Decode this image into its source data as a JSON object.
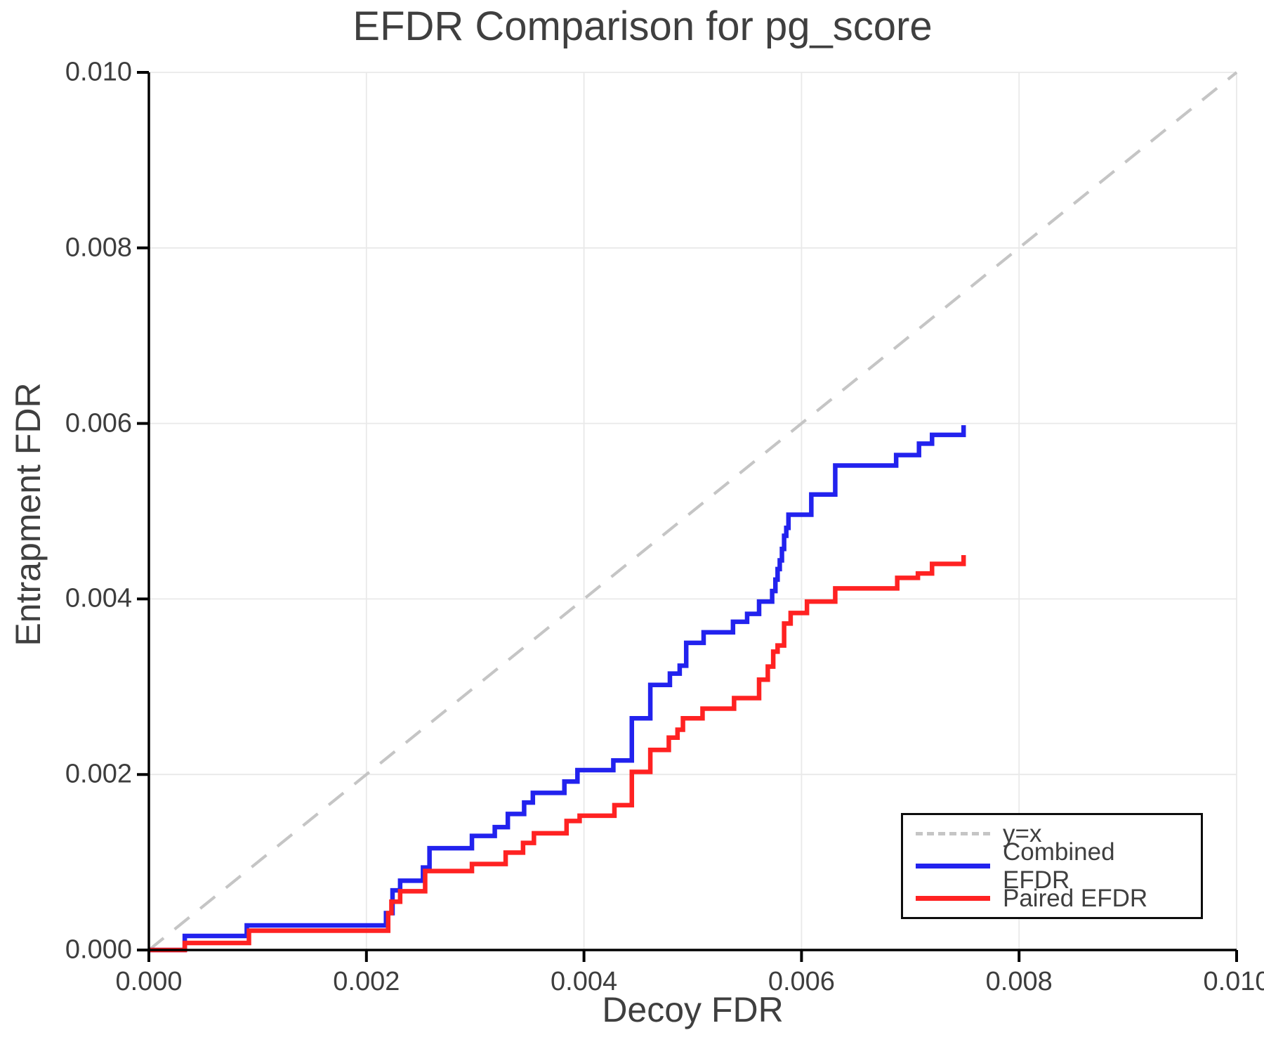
{
  "chart_data": {
    "type": "line",
    "title": "EFDR Comparison for pg_score",
    "xlabel": "Decoy FDR",
    "ylabel": "Entrapment FDR",
    "xlim": [
      0.0,
      0.01
    ],
    "ylim": [
      0.0,
      0.01
    ],
    "xticks": [
      0.0,
      0.002,
      0.004,
      0.006,
      0.008,
      0.01
    ],
    "yticks": [
      0.0,
      0.002,
      0.004,
      0.006,
      0.008,
      0.01
    ],
    "xtick_labels": [
      "0.000",
      "0.002",
      "0.004",
      "0.006",
      "0.008",
      "0.010"
    ],
    "ytick_labels": [
      "0.000",
      "0.002",
      "0.004",
      "0.006",
      "0.008",
      "0.010"
    ],
    "grid": true,
    "grid_color": "#e9e9e9",
    "spine_color": "#000000",
    "text_color": "#3d3d3d",
    "legend_position": "lower right",
    "reference_line": {
      "label": "y=x",
      "style": "dashed",
      "color": "#c5c5c5",
      "from": [
        0.0,
        0.0
      ],
      "to": [
        0.01,
        0.01
      ]
    },
    "legend": [
      {
        "label": "y=x",
        "color": "#c5c5c5",
        "dashed": true
      },
      {
        "label": "Combined EFDR",
        "color": "#2222ee",
        "dashed": false
      },
      {
        "label": "Paired EFDR",
        "color": "#ff2222",
        "dashed": false
      }
    ],
    "series": [
      {
        "name": "Combined EFDR",
        "color": "#2222ee",
        "step": true,
        "points": [
          [
            0.0,
            0.0
          ],
          [
            0.00033,
            0.00016
          ],
          [
            0.0009,
            0.00028
          ],
          [
            0.00218,
            0.00042
          ],
          [
            0.00224,
            0.00068
          ],
          [
            0.00231,
            0.00079
          ],
          [
            0.00252,
            0.00094
          ],
          [
            0.00258,
            0.00116
          ],
          [
            0.00297,
            0.0013
          ],
          [
            0.00318,
            0.0014
          ],
          [
            0.0033,
            0.00155
          ],
          [
            0.00345,
            0.00168
          ],
          [
            0.00353,
            0.00179
          ],
          [
            0.00382,
            0.00192
          ],
          [
            0.00394,
            0.00205
          ],
          [
            0.00427,
            0.00216
          ],
          [
            0.00444,
            0.00264
          ],
          [
            0.00461,
            0.00302
          ],
          [
            0.00479,
            0.00315
          ],
          [
            0.00488,
            0.00324
          ],
          [
            0.00494,
            0.0035
          ],
          [
            0.0051,
            0.00362
          ],
          [
            0.00537,
            0.00374
          ],
          [
            0.0055,
            0.00383
          ],
          [
            0.00561,
            0.00397
          ],
          [
            0.00573,
            0.00409
          ],
          [
            0.00576,
            0.00422
          ],
          [
            0.00578,
            0.00434
          ],
          [
            0.0058,
            0.00444
          ],
          [
            0.00582,
            0.00457
          ],
          [
            0.00584,
            0.00472
          ],
          [
            0.00586,
            0.00481
          ],
          [
            0.00588,
            0.00496
          ],
          [
            0.00609,
            0.00519
          ],
          [
            0.00631,
            0.00552
          ],
          [
            0.00687,
            0.00564
          ],
          [
            0.00708,
            0.00577
          ],
          [
            0.0072,
            0.00587
          ],
          [
            0.00749,
            0.00598
          ]
        ]
      },
      {
        "name": "Paired EFDR",
        "color": "#ff2222",
        "step": true,
        "points": [
          [
            0.0,
            0.0
          ],
          [
            0.00033,
            8e-05
          ],
          [
            0.00092,
            0.00022
          ],
          [
            0.0022,
            0.00042
          ],
          [
            0.00223,
            0.00055
          ],
          [
            0.00231,
            0.00067
          ],
          [
            0.00254,
            0.0009
          ],
          [
            0.00297,
            0.00098
          ],
          [
            0.00328,
            0.00111
          ],
          [
            0.00344,
            0.00122
          ],
          [
            0.00354,
            0.00133
          ],
          [
            0.00384,
            0.00147
          ],
          [
            0.00396,
            0.00153
          ],
          [
            0.00428,
            0.00165
          ],
          [
            0.00444,
            0.00203
          ],
          [
            0.00461,
            0.00228
          ],
          [
            0.00478,
            0.00242
          ],
          [
            0.00486,
            0.00251
          ],
          [
            0.00491,
            0.00264
          ],
          [
            0.00509,
            0.00275
          ],
          [
            0.00538,
            0.00287
          ],
          [
            0.00561,
            0.00308
          ],
          [
            0.00569,
            0.00323
          ],
          [
            0.00574,
            0.0034
          ],
          [
            0.00578,
            0.00347
          ],
          [
            0.00584,
            0.00372
          ],
          [
            0.0059,
            0.00384
          ],
          [
            0.00605,
            0.00397
          ],
          [
            0.00631,
            0.00412
          ],
          [
            0.00688,
            0.00424
          ],
          [
            0.00707,
            0.00429
          ],
          [
            0.0072,
            0.0044
          ],
          [
            0.00749,
            0.0045
          ]
        ]
      }
    ]
  }
}
